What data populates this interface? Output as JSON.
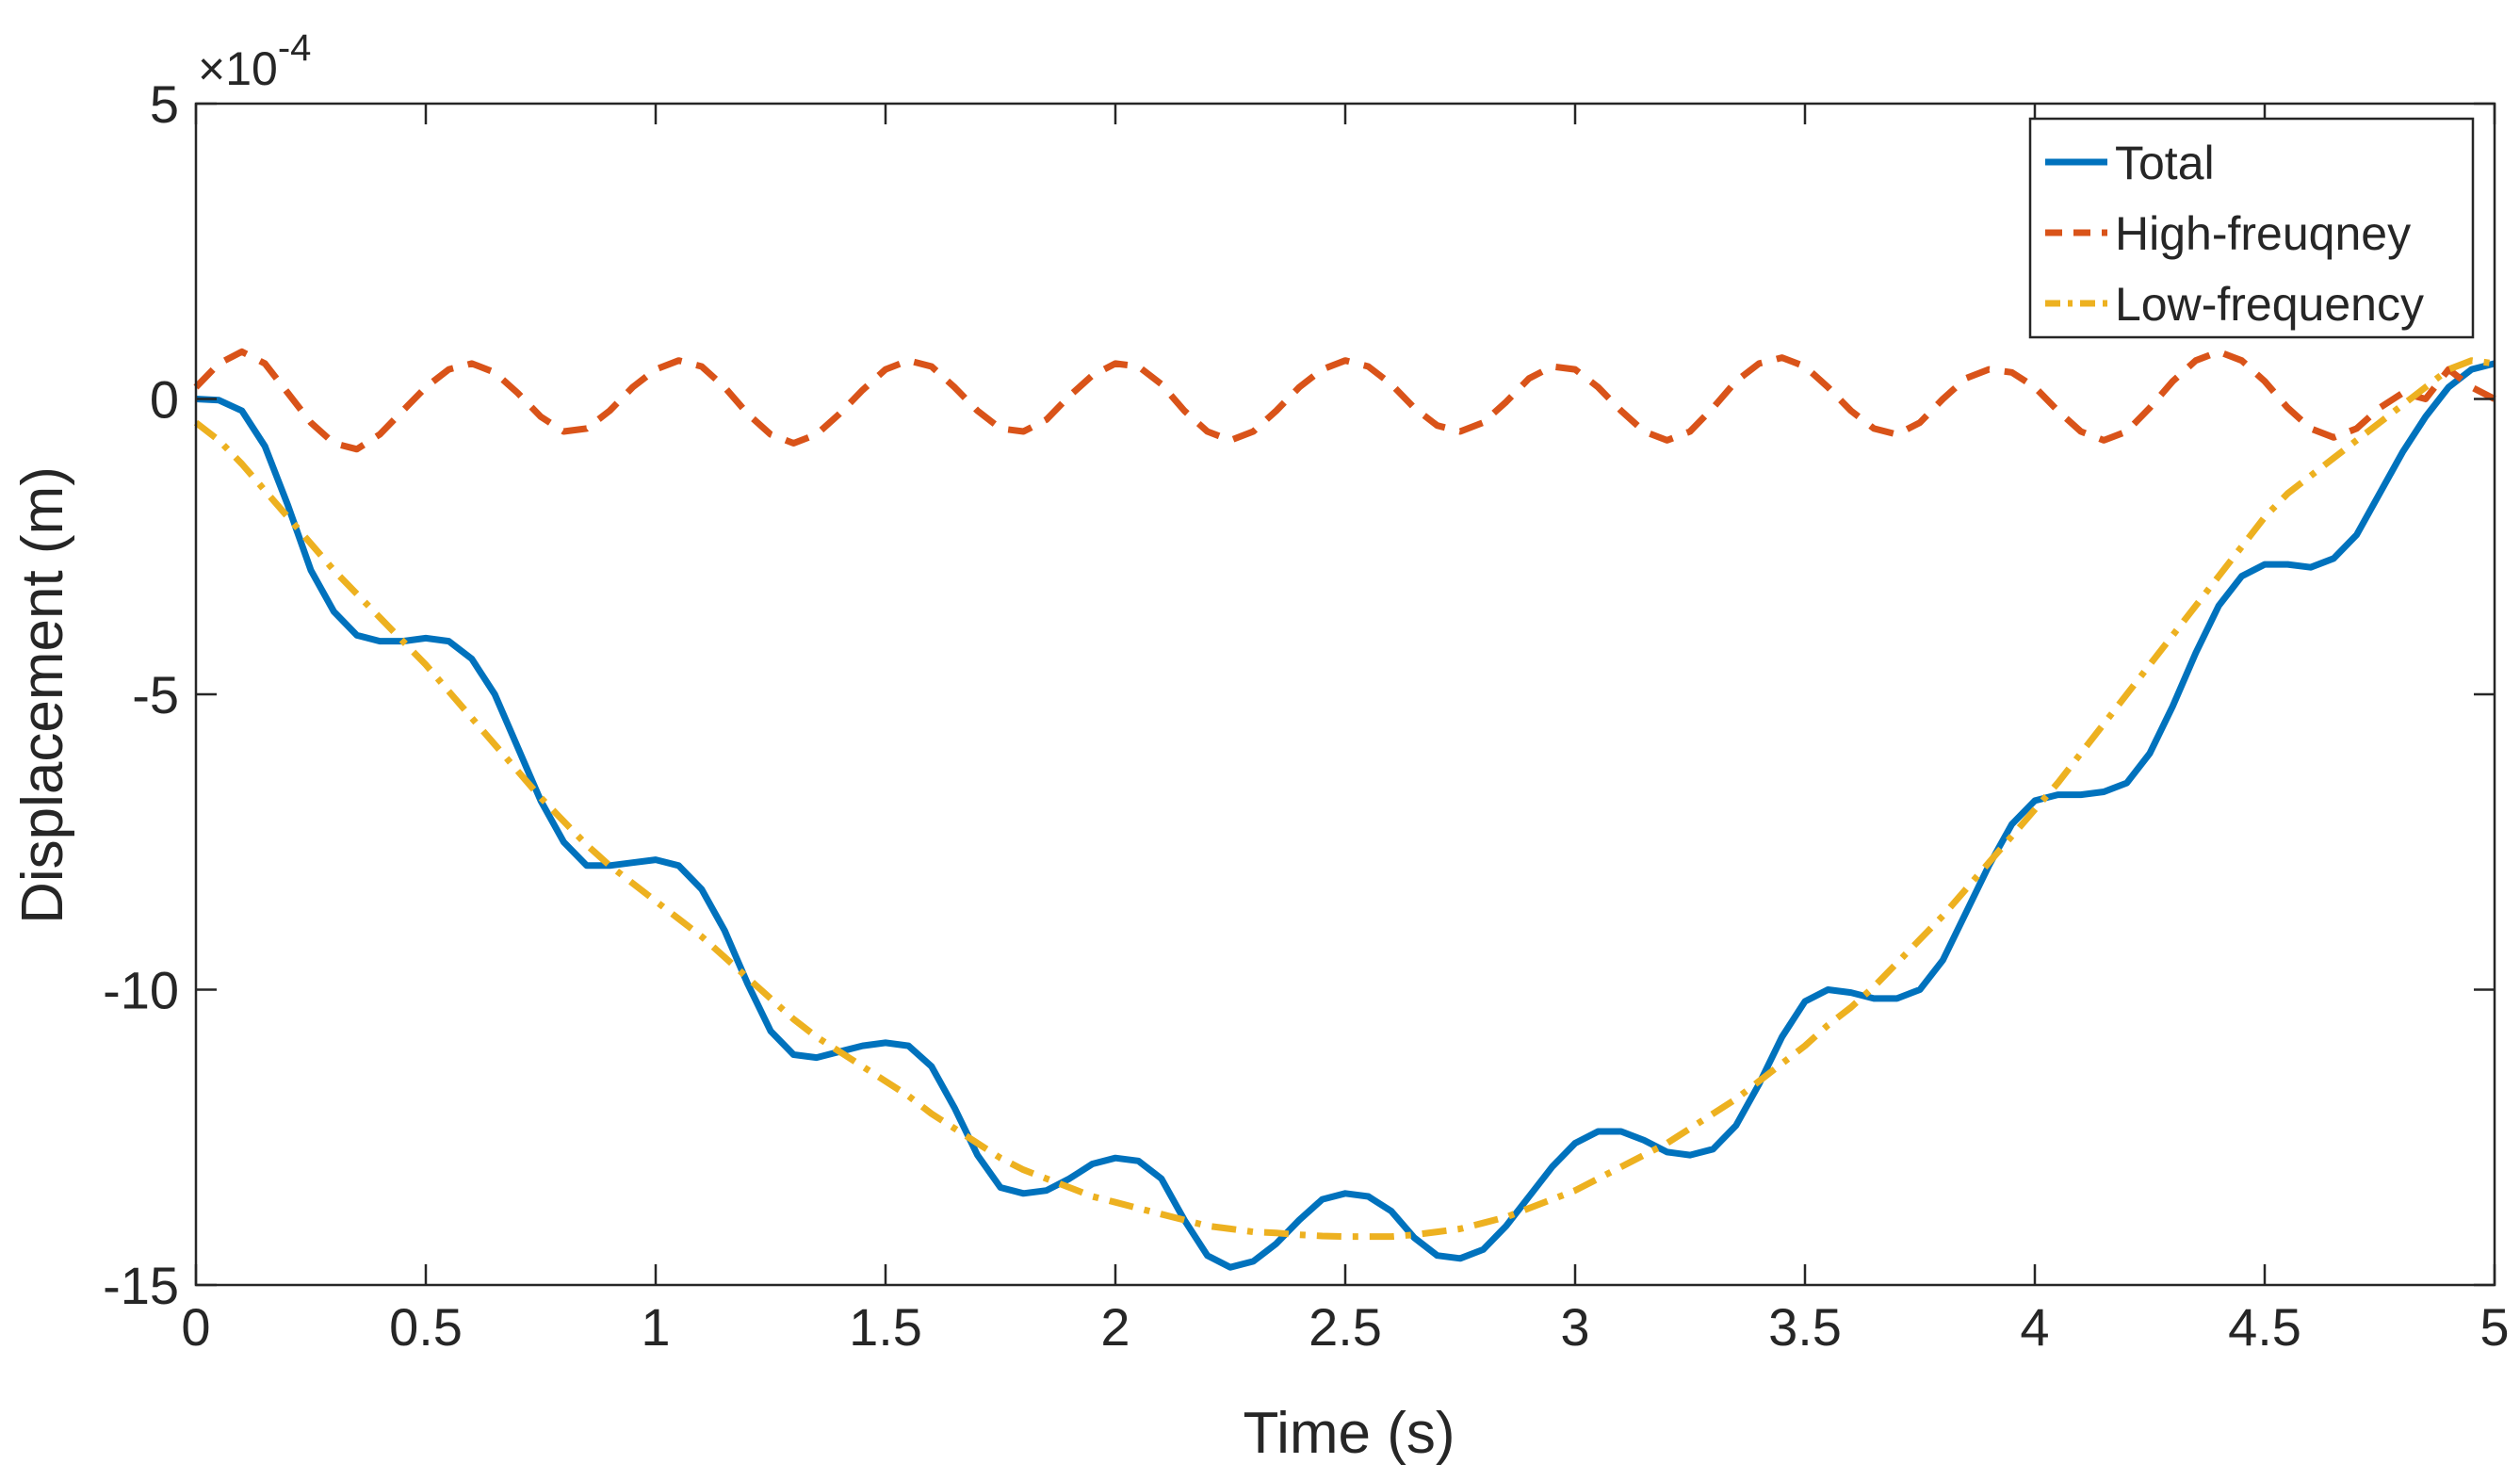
{
  "chart_data": {
    "type": "line",
    "xlabel": "Time (s)",
    "ylabel": "Displacement (m)",
    "exponent_label": {
      "base": "×10",
      "power": "-4"
    },
    "xlim": [
      0,
      5
    ],
    "ylim": [
      -15,
      5
    ],
    "xticks": [
      0,
      0.5,
      1,
      1.5,
      2,
      2.5,
      3,
      3.5,
      4,
      4.5,
      5
    ],
    "xtick_labels": [
      "0",
      "0.5",
      "1",
      "1.5",
      "2",
      "2.5",
      "3",
      "3.5",
      "4",
      "4.5",
      "5"
    ],
    "yticks": [
      -15,
      -10,
      -5,
      0,
      5
    ],
    "ytick_labels": [
      "-15",
      "-10",
      "-5",
      "0",
      "5"
    ],
    "grid": false,
    "legend_position": "top-right",
    "series": [
      {
        "name": "Total",
        "color": "#0072BD",
        "style": "solid",
        "x": [
          0,
          0.05,
          0.1,
          0.15,
          0.2,
          0.25,
          0.3,
          0.35,
          0.4,
          0.45,
          0.5,
          0.55,
          0.6,
          0.65,
          0.7,
          0.75,
          0.8,
          0.85,
          0.9,
          0.95,
          1.0,
          1.05,
          1.1,
          1.15,
          1.2,
          1.25,
          1.3,
          1.35,
          1.4,
          1.45,
          1.5,
          1.55,
          1.6,
          1.65,
          1.7,
          1.75,
          1.8,
          1.85,
          1.9,
          1.95,
          2.0,
          2.05,
          2.1,
          2.15,
          2.2,
          2.25,
          2.3,
          2.35,
          2.4,
          2.45,
          2.5,
          2.55,
          2.6,
          2.65,
          2.7,
          2.75,
          2.8,
          2.85,
          2.9,
          2.95,
          3.0,
          3.05,
          3.1,
          3.15,
          3.2,
          3.25,
          3.3,
          3.35,
          3.4,
          3.45,
          3.5,
          3.55,
          3.6,
          3.65,
          3.7,
          3.75,
          3.8,
          3.85,
          3.9,
          3.95,
          4.0,
          4.05,
          4.1,
          4.15,
          4.2,
          4.25,
          4.3,
          4.35,
          4.4,
          4.45,
          4.5,
          4.55,
          4.6,
          4.65,
          4.7,
          4.75,
          4.8,
          4.85,
          4.9,
          4.95,
          5.0
        ],
        "y": [
          0,
          -0.02,
          -0.2,
          -0.8,
          -1.8,
          -2.9,
          -3.6,
          -4.0,
          -4.1,
          -4.1,
          -4.05,
          -4.1,
          -4.4,
          -5.0,
          -5.9,
          -6.8,
          -7.5,
          -7.9,
          -7.9,
          -7.85,
          -7.8,
          -7.9,
          -8.3,
          -9.0,
          -9.9,
          -10.7,
          -11.1,
          -11.15,
          -11.05,
          -10.95,
          -10.9,
          -10.95,
          -11.3,
          -12.0,
          -12.8,
          -13.35,
          -13.45,
          -13.4,
          -13.2,
          -12.95,
          -12.85,
          -12.9,
          -13.2,
          -13.9,
          -14.5,
          -14.7,
          -14.6,
          -14.3,
          -13.9,
          -13.55,
          -13.45,
          -13.5,
          -13.75,
          -14.2,
          -14.5,
          -14.55,
          -14.4,
          -14.0,
          -13.5,
          -13.0,
          -12.6,
          -12.4,
          -12.4,
          -12.55,
          -12.75,
          -12.8,
          -12.7,
          -12.3,
          -11.6,
          -10.8,
          -10.2,
          -10.0,
          -10.05,
          -10.15,
          -10.15,
          -10.0,
          -9.5,
          -8.7,
          -7.9,
          -7.2,
          -6.8,
          -6.7,
          -6.7,
          -6.65,
          -6.5,
          -6.0,
          -5.2,
          -4.3,
          -3.5,
          -3.0,
          -2.8,
          -2.8,
          -2.85,
          -2.7,
          -2.3,
          -1.6,
          -0.9,
          -0.3,
          0.2,
          0.5,
          0.6
        ]
      },
      {
        "name": "High-freuqney",
        "color": "#D95319",
        "style": "dashed",
        "x": [
          0,
          0.05,
          0.1,
          0.15,
          0.2,
          0.25,
          0.3,
          0.35,
          0.4,
          0.45,
          0.5,
          0.55,
          0.6,
          0.65,
          0.7,
          0.75,
          0.8,
          0.85,
          0.9,
          0.95,
          1.0,
          1.05,
          1.1,
          1.15,
          1.2,
          1.25,
          1.3,
          1.35,
          1.4,
          1.45,
          1.5,
          1.55,
          1.6,
          1.65,
          1.7,
          1.75,
          1.8,
          1.85,
          1.9,
          1.95,
          2.0,
          2.05,
          2.1,
          2.15,
          2.2,
          2.25,
          2.3,
          2.35,
          2.4,
          2.45,
          2.5,
          2.55,
          2.6,
          2.65,
          2.7,
          2.75,
          2.8,
          2.85,
          2.9,
          2.95,
          3.0,
          3.05,
          3.1,
          3.15,
          3.2,
          3.25,
          3.3,
          3.35,
          3.4,
          3.45,
          3.5,
          3.55,
          3.6,
          3.65,
          3.7,
          3.75,
          3.8,
          3.85,
          3.9,
          3.95,
          4.0,
          4.05,
          4.1,
          4.15,
          4.2,
          4.25,
          4.3,
          4.35,
          4.4,
          4.45,
          4.5,
          4.55,
          4.6,
          4.65,
          4.7,
          4.75,
          4.8,
          4.85,
          4.9,
          4.95,
          5.0
        ],
        "y": [
          0.2,
          0.6,
          0.8,
          0.6,
          0.1,
          -0.4,
          -0.75,
          -0.85,
          -0.6,
          -0.2,
          0.2,
          0.5,
          0.6,
          0.45,
          0.1,
          -0.3,
          -0.55,
          -0.5,
          -0.2,
          0.2,
          0.5,
          0.65,
          0.55,
          0.2,
          -0.25,
          -0.6,
          -0.75,
          -0.6,
          -0.25,
          0.15,
          0.5,
          0.65,
          0.55,
          0.2,
          -0.2,
          -0.5,
          -0.55,
          -0.35,
          0.05,
          0.4,
          0.6,
          0.55,
          0.25,
          -0.2,
          -0.55,
          -0.7,
          -0.55,
          -0.2,
          0.2,
          0.5,
          0.65,
          0.55,
          0.25,
          -0.15,
          -0.45,
          -0.55,
          -0.4,
          -0.05,
          0.35,
          0.55,
          0.5,
          0.2,
          -0.2,
          -0.55,
          -0.7,
          -0.55,
          -0.15,
          0.3,
          0.6,
          0.7,
          0.55,
          0.2,
          -0.2,
          -0.5,
          -0.6,
          -0.4,
          0.0,
          0.35,
          0.5,
          0.45,
          0.2,
          -0.2,
          -0.55,
          -0.7,
          -0.55,
          -0.15,
          0.3,
          0.65,
          0.8,
          0.65,
          0.3,
          -0.15,
          -0.5,
          -0.65,
          -0.5,
          -0.15,
          0.1,
          0.0,
          0.5,
          0.2,
          0.0
        ]
      },
      {
        "name": "Low-frequency",
        "color": "#EDB120",
        "style": "dashdot",
        "x": [
          0,
          0.05,
          0.1,
          0.15,
          0.2,
          0.25,
          0.3,
          0.35,
          0.4,
          0.45,
          0.5,
          0.55,
          0.6,
          0.65,
          0.7,
          0.75,
          0.8,
          0.85,
          0.9,
          0.95,
          1.0,
          1.05,
          1.1,
          1.15,
          1.2,
          1.25,
          1.3,
          1.35,
          1.4,
          1.45,
          1.5,
          1.55,
          1.6,
          1.65,
          1.7,
          1.75,
          1.8,
          1.85,
          1.9,
          1.95,
          2.0,
          2.05,
          2.1,
          2.15,
          2.2,
          2.25,
          2.3,
          2.35,
          2.4,
          2.45,
          2.5,
          2.55,
          2.6,
          2.65,
          2.7,
          2.75,
          2.8,
          2.85,
          2.9,
          2.95,
          3.0,
          3.05,
          3.1,
          3.15,
          3.2,
          3.25,
          3.3,
          3.35,
          3.4,
          3.45,
          3.5,
          3.55,
          3.6,
          3.65,
          3.7,
          3.75,
          3.8,
          3.85,
          3.9,
          3.95,
          4.0,
          4.05,
          4.1,
          4.15,
          4.2,
          4.25,
          4.3,
          4.35,
          4.4,
          4.45,
          4.5,
          4.55,
          4.6,
          4.65,
          4.7,
          4.75,
          4.8,
          4.85,
          4.9,
          4.95,
          5.0
        ],
        "y": [
          -0.4,
          -0.7,
          -1.1,
          -1.55,
          -2.0,
          -2.45,
          -2.9,
          -3.3,
          -3.7,
          -4.1,
          -4.5,
          -4.95,
          -5.4,
          -5.85,
          -6.3,
          -6.75,
          -7.15,
          -7.55,
          -7.9,
          -8.2,
          -8.5,
          -8.8,
          -9.1,
          -9.45,
          -9.8,
          -10.15,
          -10.5,
          -10.8,
          -11.05,
          -11.3,
          -11.55,
          -11.8,
          -12.1,
          -12.35,
          -12.6,
          -12.85,
          -13.05,
          -13.2,
          -13.35,
          -13.5,
          -13.6,
          -13.7,
          -13.8,
          -13.9,
          -14.0,
          -14.05,
          -14.1,
          -14.12,
          -14.15,
          -14.17,
          -14.18,
          -14.18,
          -14.18,
          -14.15,
          -14.1,
          -14.05,
          -13.95,
          -13.85,
          -13.7,
          -13.55,
          -13.4,
          -13.2,
          -13.0,
          -12.8,
          -12.6,
          -12.35,
          -12.1,
          -11.85,
          -11.55,
          -11.25,
          -10.95,
          -10.6,
          -10.3,
          -9.95,
          -9.55,
          -9.15,
          -8.75,
          -8.3,
          -7.85,
          -7.4,
          -6.95,
          -6.5,
          -6.0,
          -5.5,
          -5.0,
          -4.5,
          -4.0,
          -3.5,
          -3.0,
          -2.5,
          -2.0,
          -1.6,
          -1.3,
          -1.0,
          -0.7,
          -0.4,
          -0.1,
          0.2,
          0.5,
          0.65,
          0.6
        ]
      }
    ]
  }
}
